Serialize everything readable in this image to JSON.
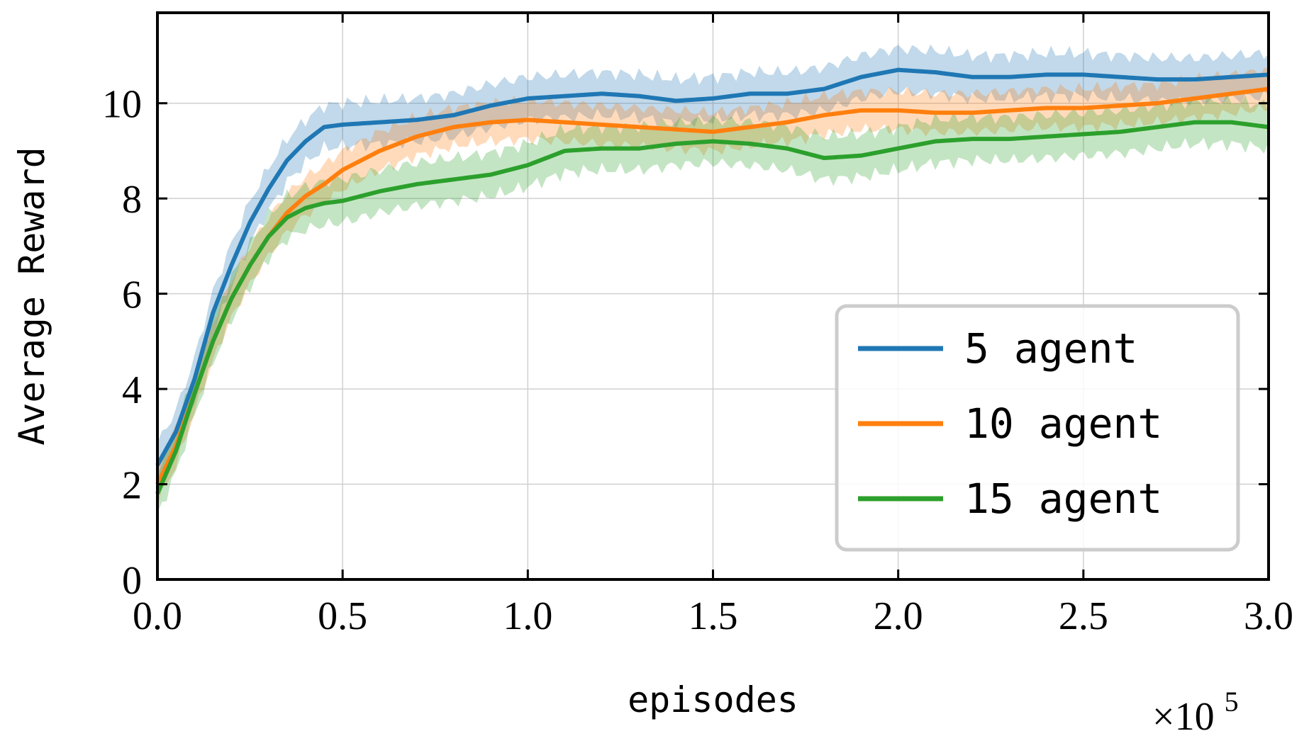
{
  "chart_data": {
    "type": "line",
    "xlabel": "episodes",
    "ylabel": "Average Reward",
    "x_multiplier": "×10",
    "x_multiplier_exp": "5",
    "xlim": [
      0,
      3.0
    ],
    "ylim": [
      0,
      11.9
    ],
    "xticks": [
      "0.0",
      "0.5",
      "1.0",
      "1.5",
      "2.0",
      "2.5",
      "3.0"
    ],
    "yticks": [
      "0",
      "2",
      "4",
      "6",
      "8",
      "10"
    ],
    "grid": true,
    "legend_position": "lower-right",
    "x": [
      0.0,
      0.05,
      0.1,
      0.15,
      0.2,
      0.25,
      0.3,
      0.35,
      0.4,
      0.45,
      0.5,
      0.6,
      0.7,
      0.8,
      0.9,
      1.0,
      1.1,
      1.2,
      1.3,
      1.4,
      1.5,
      1.6,
      1.7,
      1.8,
      1.9,
      2.0,
      2.1,
      2.2,
      2.3,
      2.4,
      2.5,
      2.6,
      2.7,
      2.8,
      2.9,
      3.0
    ],
    "series": [
      {
        "name": "5 agent",
        "color": "#1f77b4",
        "values": [
          2.4,
          3.1,
          4.2,
          5.6,
          6.6,
          7.5,
          8.2,
          8.8,
          9.2,
          9.5,
          9.55,
          9.6,
          9.65,
          9.75,
          9.95,
          10.1,
          10.15,
          10.2,
          10.15,
          10.05,
          10.1,
          10.2,
          10.2,
          10.3,
          10.55,
          10.7,
          10.65,
          10.55,
          10.55,
          10.6,
          10.6,
          10.55,
          10.5,
          10.5,
          10.55,
          10.6
        ],
        "band": 0.45
      },
      {
        "name": "10 agent",
        "color": "#ff7f0e",
        "values": [
          2.0,
          2.8,
          3.9,
          5.0,
          5.9,
          6.6,
          7.2,
          7.7,
          8.05,
          8.3,
          8.6,
          9.0,
          9.3,
          9.5,
          9.6,
          9.65,
          9.6,
          9.55,
          9.5,
          9.45,
          9.4,
          9.5,
          9.6,
          9.75,
          9.85,
          9.85,
          9.8,
          9.8,
          9.85,
          9.9,
          9.9,
          9.95,
          10.0,
          10.1,
          10.2,
          10.3
        ],
        "band": 0.4
      },
      {
        "name": "15 agent",
        "color": "#2ca02c",
        "values": [
          1.8,
          2.7,
          3.9,
          5.0,
          5.9,
          6.6,
          7.2,
          7.6,
          7.8,
          7.9,
          7.95,
          8.15,
          8.3,
          8.4,
          8.5,
          8.7,
          9.0,
          9.05,
          9.05,
          9.15,
          9.2,
          9.15,
          9.05,
          8.85,
          8.9,
          9.05,
          9.2,
          9.25,
          9.25,
          9.3,
          9.35,
          9.4,
          9.5,
          9.6,
          9.6,
          9.5
        ],
        "band": 0.45
      }
    ]
  }
}
